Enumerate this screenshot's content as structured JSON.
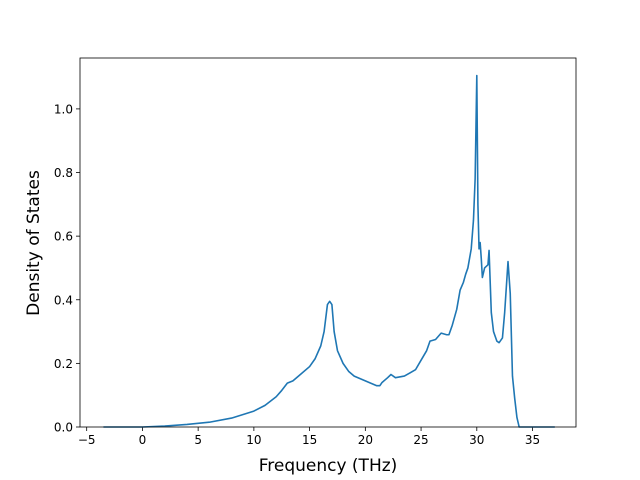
{
  "chart_data": {
    "type": "line",
    "xlabel": "Frequency (THz)",
    "ylabel": "Density of States",
    "xlim": [
      -5.6,
      38.9
    ],
    "ylim": [
      0,
      1.16
    ],
    "xticks": [
      {
        "value": -5,
        "label": "−5"
      },
      0,
      5,
      10,
      15,
      20,
      25,
      30,
      35
    ],
    "yticks": [
      {
        "value": 0,
        "label": "0.0"
      },
      {
        "value": 0.2,
        "label": "0.2"
      },
      {
        "value": 0.4,
        "label": "0.4"
      },
      {
        "value": 0.6,
        "label": "0.6"
      },
      {
        "value": 0.8,
        "label": "0.8"
      },
      {
        "value": 1,
        "label": "1.0"
      }
    ],
    "x": [
      -3.5,
      0,
      2,
      4,
      6,
      8,
      10,
      11,
      12,
      12.5,
      13,
      13.5,
      14,
      15,
      15.5,
      16,
      16.3,
      16.6,
      16.8,
      17,
      17.2,
      17.5,
      18,
      18.5,
      19,
      20,
      21,
      21.3,
      21.5,
      22,
      22.3,
      22.7,
      23.5,
      24,
      24.5,
      25,
      25.5,
      25.8,
      26.3,
      26.8,
      27.3,
      27.5,
      27.8,
      28.2,
      28.5,
      28.8,
      29,
      29.2,
      29.5,
      29.7,
      29.85,
      30,
      30.1,
      30.2,
      30.3,
      30.4,
      30.5,
      30.7,
      31,
      31.1,
      31.3,
      31.5,
      31.8,
      32,
      32.3,
      32.5,
      32.8,
      33,
      33.2,
      33.4,
      33.6,
      33.8,
      34,
      37
    ],
    "series": [
      {
        "color": "#1f77b4",
        "values": [
          0,
          0,
          0.003,
          0.008,
          0.015,
          0.028,
          0.05,
          0.068,
          0.095,
          0.115,
          0.138,
          0.145,
          0.16,
          0.19,
          0.215,
          0.255,
          0.3,
          0.385,
          0.395,
          0.385,
          0.3,
          0.24,
          0.2,
          0.175,
          0.16,
          0.145,
          0.13,
          0.13,
          0.14,
          0.155,
          0.165,
          0.155,
          0.16,
          0.17,
          0.18,
          0.21,
          0.24,
          0.27,
          0.275,
          0.295,
          0.29,
          0.29,
          0.32,
          0.37,
          0.43,
          0.455,
          0.48,
          0.5,
          0.56,
          0.65,
          0.78,
          1.105,
          0.7,
          0.56,
          0.58,
          0.53,
          0.47,
          0.5,
          0.51,
          0.555,
          0.36,
          0.3,
          0.27,
          0.265,
          0.28,
          0.36,
          0.52,
          0.42,
          0.16,
          0.09,
          0.03,
          0,
          0,
          0
        ]
      }
    ]
  }
}
